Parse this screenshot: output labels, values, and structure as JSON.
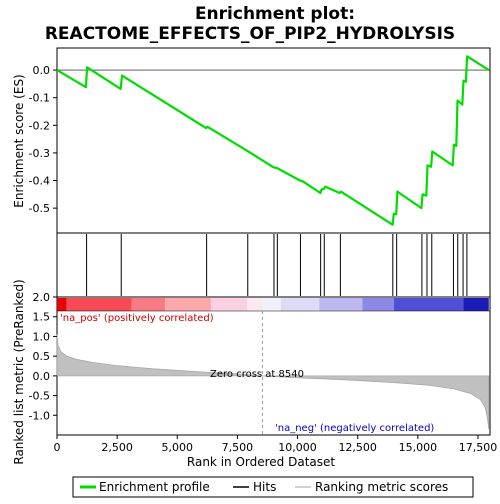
{
  "chart_data": {
    "type": "line",
    "title_line1": "Enrichment plot:",
    "title_line2": "REACTOME_EFFECTS_OF_PIP2_HYDROLYSIS",
    "es_panel": {
      "ylabel": "Enrichment score (ES)",
      "ylim": [
        -0.59,
        0.08
      ],
      "yticks": [
        0.0,
        -0.1,
        -0.2,
        -0.3,
        -0.4,
        -0.5
      ],
      "ytick_labels": [
        "0.0",
        "-0.1",
        "-0.2",
        "-0.3",
        "-0.4",
        "-0.5"
      ],
      "line_color": "#00dd00",
      "points": [
        [
          0,
          0.0
        ],
        [
          1200,
          -0.062
        ],
        [
          1250,
          0.01
        ],
        [
          2650,
          -0.068
        ],
        [
          2700,
          -0.02
        ],
        [
          6200,
          -0.21
        ],
        [
          6250,
          -0.205
        ],
        [
          7900,
          -0.292
        ],
        [
          9000,
          -0.352
        ],
        [
          9150,
          -0.355
        ],
        [
          10100,
          -0.4
        ],
        [
          10200,
          -0.402
        ],
        [
          10950,
          -0.445
        ],
        [
          11000,
          -0.432
        ],
        [
          11100,
          -0.43
        ],
        [
          11150,
          -0.422
        ],
        [
          11750,
          -0.445
        ],
        [
          11800,
          -0.44
        ],
        [
          13950,
          -0.56
        ],
        [
          14000,
          -0.52
        ],
        [
          14100,
          -0.522
        ],
        [
          14150,
          -0.44
        ],
        [
          15150,
          -0.5
        ],
        [
          15200,
          -0.45
        ],
        [
          15350,
          -0.455
        ],
        [
          15400,
          -0.345
        ],
        [
          15550,
          -0.35
        ],
        [
          15600,
          -0.295
        ],
        [
          16450,
          -0.345
        ],
        [
          16500,
          -0.27
        ],
        [
          16600,
          -0.275
        ],
        [
          16650,
          -0.11
        ],
        [
          16850,
          -0.125
        ],
        [
          16900,
          -0.038
        ],
        [
          17000,
          -0.042
        ],
        [
          17050,
          0.05
        ],
        [
          17950,
          0.0
        ]
      ]
    },
    "hits_panel": {
      "hit_positions": [
        1230,
        2670,
        6220,
        7930,
        9020,
        9160,
        10120,
        10960,
        11110,
        11780,
        13960,
        14120,
        15170,
        15380,
        15580,
        16480,
        16660,
        16880,
        17040
      ]
    },
    "rank_panel": {
      "ylabel": "Ranked list metric (PreRanked)",
      "ylim": [
        -1.5,
        2.0
      ],
      "yticks": [
        2.0,
        1.5,
        1.0,
        0.5,
        0.0,
        -0.5,
        -1.0
      ],
      "ytick_labels": [
        "2.0",
        "1.5",
        "1.0",
        "0.5",
        "0.0",
        "-0.5",
        "-1.0"
      ],
      "fill_color": "#c0c0c0",
      "pos_label": "'na_pos' (positively correlated)",
      "neg_label": "'na_neg' (negatively correlated)",
      "zero_cross_label": "Zero cross at 8540",
      "zero_cross": 8540,
      "metric_profile": [
        [
          0,
          1.05
        ],
        [
          40,
          0.78
        ],
        [
          150,
          0.62
        ],
        [
          400,
          0.5
        ],
        [
          800,
          0.42
        ],
        [
          1500,
          0.34
        ],
        [
          2500,
          0.26
        ],
        [
          4000,
          0.18
        ],
        [
          6000,
          0.1
        ],
        [
          7500,
          0.05
        ],
        [
          8540,
          0.0
        ],
        [
          10000,
          -0.05
        ],
        [
          12000,
          -0.1
        ],
        [
          14000,
          -0.17
        ],
        [
          15500,
          -0.24
        ],
        [
          16500,
          -0.33
        ],
        [
          17200,
          -0.45
        ],
        [
          17600,
          -0.6
        ],
        [
          17800,
          -0.8
        ],
        [
          17900,
          -1.1
        ],
        [
          17950,
          -1.35
        ]
      ]
    },
    "color_bar": {
      "segments": [
        {
          "from": 0,
          "to": 400,
          "color": "#e8000a"
        },
        {
          "from": 400,
          "to": 3100,
          "color": "#f74a56"
        },
        {
          "from": 3100,
          "to": 4500,
          "color": "#f97b84"
        },
        {
          "from": 4500,
          "to": 6400,
          "color": "#fba8ad"
        },
        {
          "from": 6400,
          "to": 7900,
          "color": "#fdcfe2"
        },
        {
          "from": 7900,
          "to": 8540,
          "color": "#fde8f1"
        },
        {
          "from": 8540,
          "to": 9300,
          "color": "#f1f1fb"
        },
        {
          "from": 9300,
          "to": 10900,
          "color": "#dcdcf7"
        },
        {
          "from": 10900,
          "to": 12700,
          "color": "#b9b9f0"
        },
        {
          "from": 12700,
          "to": 14000,
          "color": "#8a8ae6"
        },
        {
          "from": 14000,
          "to": 16900,
          "color": "#5050d6"
        },
        {
          "from": 16900,
          "to": 17950,
          "color": "#1a1ab5"
        }
      ]
    },
    "xaxis": {
      "xlabel": "Rank in Ordered Dataset",
      "xlim": [
        0,
        18000
      ],
      "xticks": [
        0,
        2500,
        5000,
        7500,
        10000,
        12500,
        15000,
        17500
      ],
      "xtick_labels": [
        "0",
        "2,500",
        "5,000",
        "7,500",
        "10,000",
        "12,500",
        "15,000",
        "17,500"
      ]
    },
    "legend": {
      "items": [
        {
          "label": "Enrichment profile",
          "color": "#00dd00"
        },
        {
          "label": "Hits",
          "color": "#000000"
        },
        {
          "label": "Ranking metric scores",
          "color": "#c0c0c0"
        }
      ]
    }
  }
}
